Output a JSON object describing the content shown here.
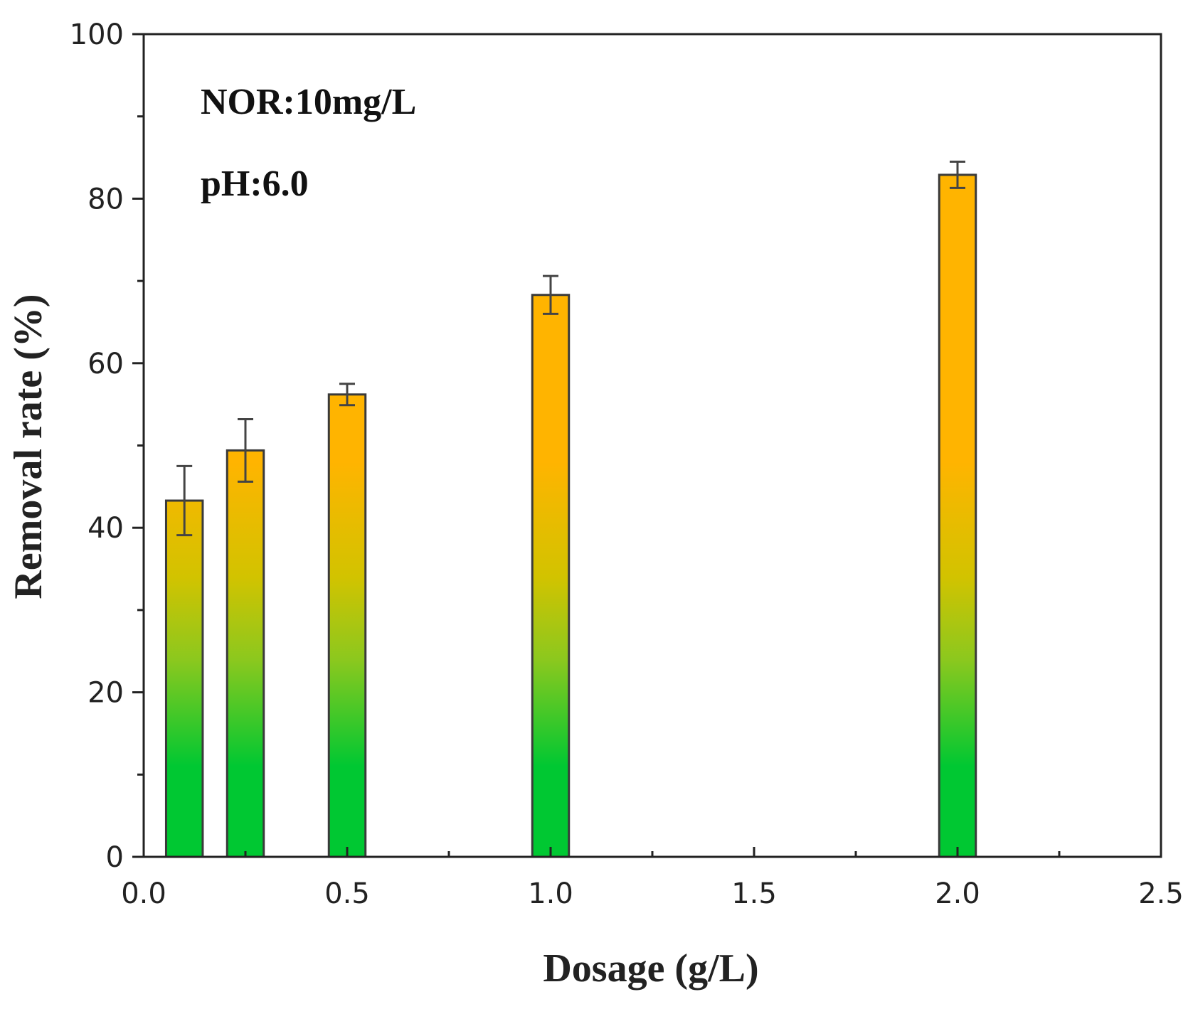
{
  "chart_data": {
    "type": "bar",
    "title": "",
    "xlabel": "Dosage (g/L)",
    "ylabel": "Removal rate (%)",
    "xlim": [
      0.0,
      2.5
    ],
    "ylim": [
      0,
      100
    ],
    "x_ticks": [
      "0.0",
      "0.5",
      "1.0",
      "1.5",
      "2.0",
      "2.5"
    ],
    "x_tick_values": [
      0.0,
      0.5,
      1.0,
      1.5,
      2.0,
      2.5
    ],
    "y_ticks": [
      "0",
      "20",
      "40",
      "60",
      "80",
      "100"
    ],
    "y_tick_values": [
      0,
      20,
      40,
      60,
      80,
      100
    ],
    "x": [
      0.1,
      0.25,
      0.5,
      1.0,
      2.0
    ],
    "values": [
      43.3,
      49.4,
      56.2,
      68.3,
      82.9
    ],
    "errors": [
      4.2,
      3.8,
      1.3,
      2.3,
      1.6
    ],
    "bar_width": 0.09,
    "colors": {
      "top": "#ffb400",
      "bottom": "#00c832"
    },
    "annotations": [
      "NOR:10mg/L",
      "pH:6.0"
    ]
  }
}
